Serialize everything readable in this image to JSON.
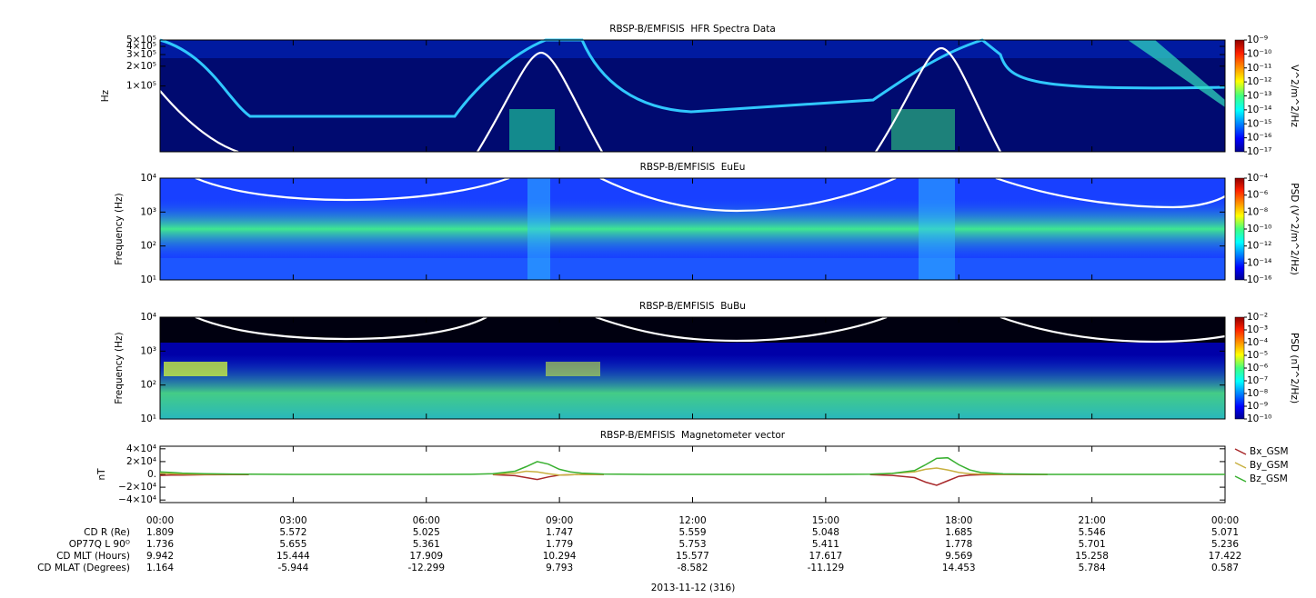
{
  "chart_data": [
    {
      "type": "spectrogram",
      "title": "RBSP-B/EMFISIS  HFR Spectra Data",
      "ylabel": "Hz",
      "ylog": true,
      "ylim": [
        10000,
        500000
      ],
      "yticks": [
        {
          "value": 100000,
          "label": "1×10⁵"
        },
        {
          "value": 200000,
          "label": "2×10⁵"
        },
        {
          "value": 300000,
          "label": "3×10⁵"
        },
        {
          "value": 400000,
          "label": "4×10⁵"
        },
        {
          "value": 500000,
          "label": "5×10⁵"
        }
      ],
      "colorbar": {
        "label": "V^2/m^2/Hz",
        "log": true,
        "lim": [
          1e-17,
          1e-09
        ],
        "ticks": [
          {
            "value": 1e-09,
            "label": "10⁻⁹"
          },
          {
            "value": 1e-10,
            "label": "10⁻¹⁰"
          },
          {
            "value": 1e-11,
            "label": "10⁻¹¹"
          },
          {
            "value": 1e-12,
            "label": "10⁻¹²"
          },
          {
            "value": 1e-13,
            "label": "10⁻¹³"
          },
          {
            "value": 1e-14,
            "label": "10⁻¹⁴"
          },
          {
            "value": 1e-15,
            "label": "10⁻¹⁵"
          },
          {
            "value": 1e-16,
            "label": "10⁻¹⁶"
          },
          {
            "value": 1e-17,
            "label": "10⁻¹⁷"
          }
        ]
      }
    },
    {
      "type": "spectrogram",
      "title": "RBSP-B/EMFISIS  EuEu",
      "ylabel": "Frequency (Hz)",
      "ylog": true,
      "ylim": [
        10,
        10000
      ],
      "yticks": [
        {
          "value": 10,
          "label": "10¹"
        },
        {
          "value": 100,
          "label": "10²"
        },
        {
          "value": 1000,
          "label": "10³"
        },
        {
          "value": 10000,
          "label": "10⁴"
        }
      ],
      "colorbar": {
        "label": "PSD (V^2/m^2/Hz)",
        "log": true,
        "lim": [
          1e-16,
          0.0001
        ],
        "ticks": [
          {
            "value": 0.0001,
            "label": "10⁻⁴"
          },
          {
            "value": 1e-06,
            "label": "10⁻⁶"
          },
          {
            "value": 1e-08,
            "label": "10⁻⁸"
          },
          {
            "value": 1e-10,
            "label": "10⁻¹⁰"
          },
          {
            "value": 1e-12,
            "label": "10⁻¹²"
          },
          {
            "value": 1e-14,
            "label": "10⁻¹⁴"
          },
          {
            "value": 1e-16,
            "label": "10⁻¹⁶"
          }
        ]
      }
    },
    {
      "type": "spectrogram",
      "title": "RBSP-B/EMFISIS  BuBu",
      "ylabel": "Frequency (Hz)",
      "ylog": true,
      "ylim": [
        10,
        10000
      ],
      "yticks": [
        {
          "value": 10,
          "label": "10¹"
        },
        {
          "value": 100,
          "label": "10²"
        },
        {
          "value": 1000,
          "label": "10³"
        },
        {
          "value": 10000,
          "label": "10⁴"
        }
      ],
      "colorbar": {
        "label": "PSD (nT^2/Hz)",
        "log": true,
        "lim": [
          1e-10,
          0.01
        ],
        "ticks": [
          {
            "value": 0.01,
            "label": "10⁻²"
          },
          {
            "value": 0.001,
            "label": "10⁻³"
          },
          {
            "value": 0.0001,
            "label": "10⁻⁴"
          },
          {
            "value": 1e-05,
            "label": "10⁻⁵"
          },
          {
            "value": 1e-06,
            "label": "10⁻⁶"
          },
          {
            "value": 1e-07,
            "label": "10⁻⁷"
          },
          {
            "value": 1e-08,
            "label": "10⁻⁸"
          },
          {
            "value": 1e-09,
            "label": "10⁻⁹"
          },
          {
            "value": 1e-10,
            "label": "10⁻¹⁰"
          }
        ]
      }
    },
    {
      "type": "line",
      "title": "RBSP-B/EMFISIS  Magnetometer vector",
      "ylabel": "nT",
      "ylim": [
        -44000,
        44000
      ],
      "yticks": [
        {
          "value": 40000,
          "label": "4×10⁴"
        },
        {
          "value": 20000,
          "label": "2×10⁴"
        },
        {
          "value": 0,
          "label": "0."
        },
        {
          "value": -20000,
          "label": "−2×10⁴"
        },
        {
          "value": -40000,
          "label": "−4×10⁴"
        }
      ],
      "xlim": [
        0,
        24
      ],
      "xticks": [
        {
          "value": 0,
          "label": "00:00"
        },
        {
          "value": 3,
          "label": "03:00"
        },
        {
          "value": 6,
          "label": "06:00"
        },
        {
          "value": 9,
          "label": "09:00"
        },
        {
          "value": 12,
          "label": "12:00"
        },
        {
          "value": 15,
          "label": "15:00"
        },
        {
          "value": 18,
          "label": "18:00"
        },
        {
          "value": 21,
          "label": "21:00"
        },
        {
          "value": 24,
          "label": "00:00"
        }
      ],
      "x": [
        0,
        0.25,
        0.5,
        1,
        2,
        3,
        4,
        5,
        6,
        7,
        7.5,
        8,
        8.25,
        8.5,
        8.75,
        9,
        9.25,
        9.5,
        10,
        11,
        12,
        13,
        14,
        15,
        16,
        16.5,
        17,
        17.25,
        17.5,
        17.75,
        18,
        18.25,
        18.5,
        19,
        20,
        21,
        22,
        23,
        24
      ],
      "legend": "right",
      "series": [
        {
          "name": "Bx_GSM",
          "color": "#a8282a",
          "values": [
            -1500,
            -1200,
            -1000,
            -600,
            -300,
            null,
            null,
            null,
            null,
            null,
            -300,
            -2000,
            -5000,
            -8000,
            -4000,
            -1000,
            -500,
            -200,
            -100,
            null,
            null,
            null,
            null,
            null,
            -300,
            -1500,
            -5000,
            -12000,
            -17000,
            -10000,
            -3000,
            -1000,
            -500,
            -200,
            -100,
            null,
            null,
            null,
            null
          ]
        },
        {
          "name": "By_GSM",
          "color": "#c8b040",
          "values": [
            1500,
            1000,
            500,
            200,
            100,
            null,
            null,
            null,
            null,
            null,
            200,
            2000,
            5000,
            4000,
            1000,
            -1000,
            -500,
            -200,
            0,
            null,
            null,
            null,
            null,
            null,
            200,
            1500,
            4000,
            8000,
            10000,
            7000,
            3000,
            1000,
            500,
            200,
            0,
            null,
            null,
            null,
            null
          ]
        },
        {
          "name": "Bz_GSM",
          "color": "#38b030",
          "values": [
            4000,
            3000,
            2000,
            1000,
            300,
            0,
            0,
            0,
            0,
            200,
            1000,
            5000,
            12000,
            20000,
            16000,
            8000,
            4000,
            2000,
            500,
            0,
            0,
            0,
            0,
            0,
            300,
            1500,
            6000,
            15000,
            25000,
            26000,
            15000,
            7000,
            3000,
            800,
            0,
            0,
            0,
            0,
            0
          ]
        }
      ]
    }
  ],
  "ephemeris": {
    "labels": [
      "CD R (Re)",
      "OP77Q L 90ᴼ",
      "CD MLT (Hours)",
      "CD MLAT (Degrees)"
    ],
    "rows": [
      [
        "1.809",
        "5.572",
        "5.025",
        "1.747",
        "5.559",
        "5.048",
        "1.685",
        "5.546",
        "5.071"
      ],
      [
        "1.736",
        "5.655",
        "5.361",
        "1.779",
        "5.753",
        "5.411",
        "1.778",
        "5.701",
        "5.236"
      ],
      [
        "9.942",
        "15.444",
        "17.909",
        "10.294",
        "15.577",
        "17.617",
        "9.569",
        "15.258",
        "17.422"
      ],
      [
        "1.164",
        "-5.944",
        "-12.299",
        "9.793",
        "-8.582",
        "-11.129",
        "14.453",
        "5.784",
        "0.587"
      ]
    ]
  },
  "date_label": "2013-11-12 (316)"
}
